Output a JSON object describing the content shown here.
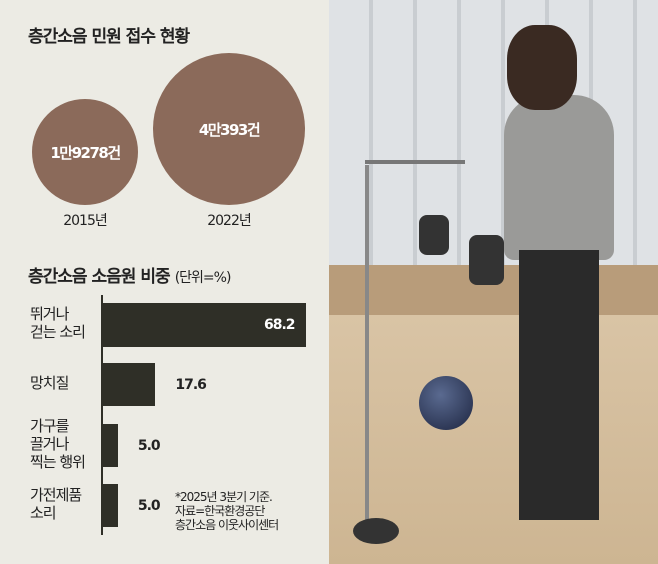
{
  "complaints": {
    "title": "층간소음 민원 접수 현황",
    "items": [
      {
        "year": "2015년",
        "label": "1만9278건",
        "value": 19278
      },
      {
        "year": "2022년",
        "label": "4만393건",
        "value": 40393
      }
    ],
    "color": "#8b6a5a"
  },
  "chart_data": {
    "type": "bar",
    "orientation": "horizontal",
    "title": "층간소음 소음원 비중",
    "unit": "(단위=%)",
    "categories": [
      "뛰거나\n걷는 소리",
      "망치질",
      "가구를\n끌거나\n찍는 행위",
      "가전제품\n소리"
    ],
    "values": [
      68.2,
      17.6,
      5.0,
      5.0
    ],
    "labels": [
      "68.2",
      "17.6",
      "5.0",
      "5.0"
    ],
    "bar_color": "#2f2f27"
  },
  "footnote": [
    "*2025년 3분기 기준.",
    "자료=한국환경공단",
    "층간소음 이웃사이센터"
  ],
  "panel_bg": "#ecebe4"
}
